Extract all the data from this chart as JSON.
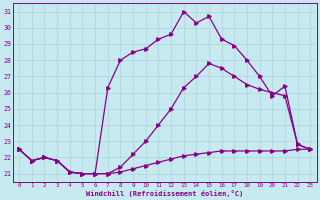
{
  "xlabel": "Windchill (Refroidissement éolien,°C)",
  "xlim": [
    -0.5,
    23.5
  ],
  "ylim": [
    20.5,
    31.5
  ],
  "yticks": [
    21,
    22,
    23,
    24,
    25,
    26,
    27,
    28,
    29,
    30,
    31
  ],
  "xticks": [
    0,
    1,
    2,
    3,
    4,
    5,
    6,
    7,
    8,
    9,
    10,
    11,
    12,
    13,
    14,
    15,
    16,
    17,
    18,
    19,
    20,
    21,
    22,
    23
  ],
  "bg_color": "#c6eaef",
  "line_color": "#880088",
  "grid_color": "#b0d8e0",
  "line1_x": [
    0,
    1,
    2,
    3,
    4,
    5,
    6,
    7,
    8,
    9,
    10,
    11,
    12,
    13,
    14,
    15,
    16,
    17,
    18,
    19,
    20,
    21,
    22,
    23
  ],
  "line1_y": [
    22.5,
    21.8,
    22.0,
    21.8,
    21.1,
    21.0,
    21.0,
    26.3,
    28.0,
    28.5,
    28.7,
    29.3,
    29.6,
    31.0,
    30.3,
    30.7,
    29.3,
    28.9,
    28.0,
    27.0,
    25.8,
    26.4,
    22.8,
    22.5
  ],
  "line2_x": [
    0,
    1,
    2,
    3,
    4,
    5,
    6,
    7,
    8,
    9,
    10,
    11,
    12,
    13,
    14,
    15,
    16,
    17,
    18,
    19,
    20,
    21,
    22,
    23
  ],
  "line2_y": [
    22.5,
    21.8,
    22.0,
    21.8,
    21.1,
    21.0,
    21.0,
    21.0,
    21.4,
    22.2,
    23.0,
    24.0,
    25.0,
    26.3,
    27.0,
    27.8,
    27.5,
    27.0,
    26.5,
    26.2,
    26.0,
    25.8,
    22.8,
    22.5
  ],
  "line3_x": [
    0,
    1,
    2,
    3,
    4,
    5,
    6,
    7,
    8,
    9,
    10,
    11,
    12,
    13,
    14,
    15,
    16,
    17,
    18,
    19,
    20,
    21,
    22,
    23
  ],
  "line3_y": [
    22.5,
    21.8,
    22.0,
    21.8,
    21.1,
    21.0,
    21.0,
    21.0,
    21.1,
    21.3,
    21.5,
    21.7,
    21.9,
    22.1,
    22.2,
    22.3,
    22.4,
    22.4,
    22.4,
    22.4,
    22.4,
    22.4,
    22.5,
    22.5
  ]
}
